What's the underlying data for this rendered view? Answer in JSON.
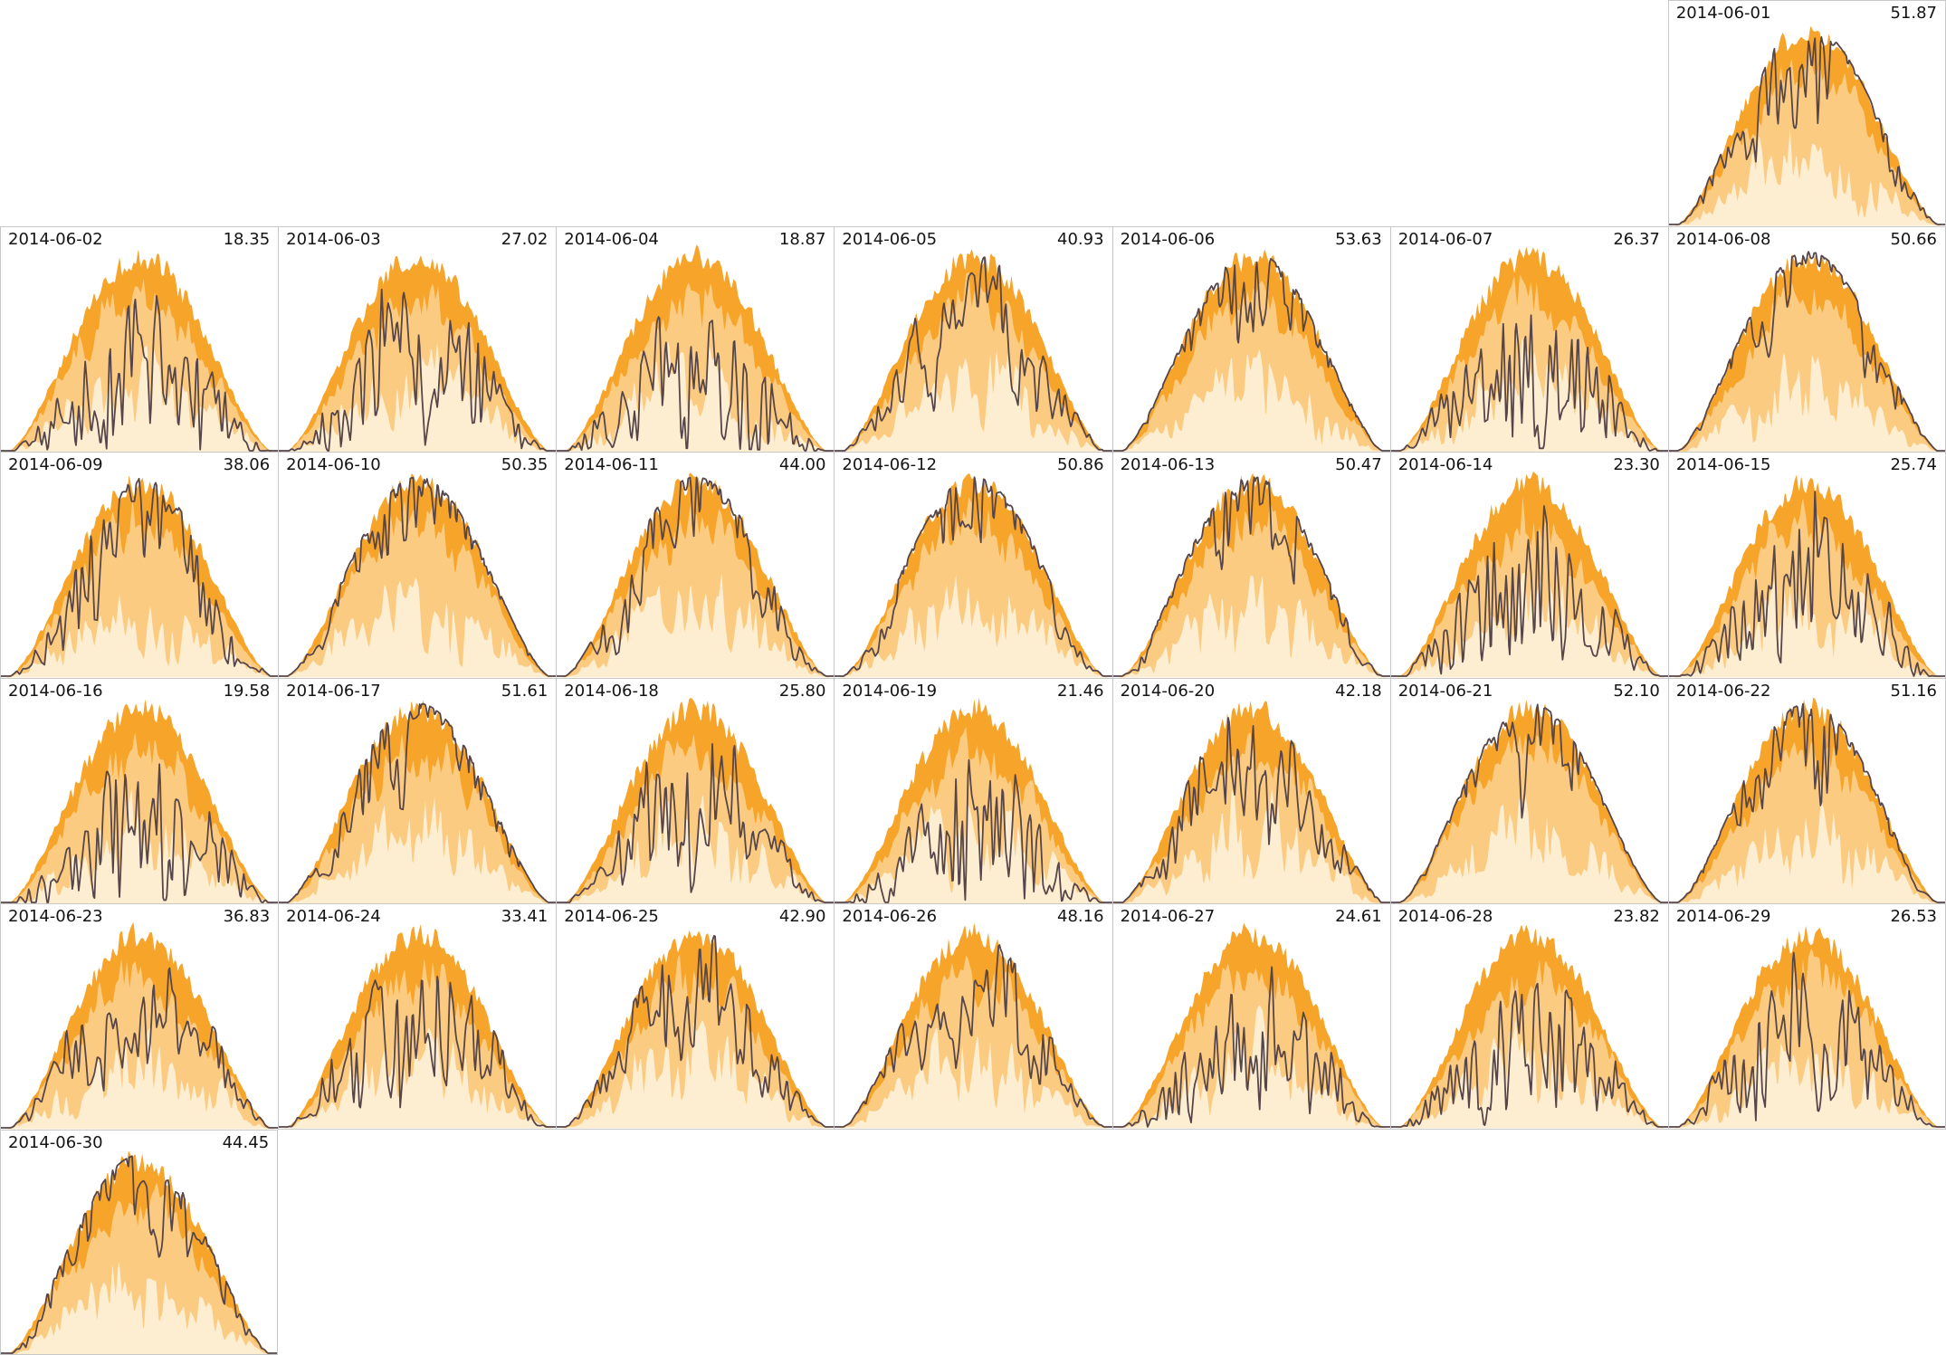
{
  "chart_data": {
    "type": "area",
    "layout": {
      "style": "calendar-small-multiples",
      "columns": 7,
      "rows": 6,
      "first_panel_column": 7,
      "panel_border_color": "#c8c8c8",
      "axes_ticks_visible": false,
      "background": "#ffffff"
    },
    "bands": [
      {
        "name": "upper-envelope",
        "color": "#f7a42a"
      },
      {
        "name": "middle-envelope",
        "color": "#fbcb81"
      },
      {
        "name": "lower-envelope",
        "color": "#fdeed2"
      }
    ],
    "measurement_line": {
      "name": "daily-measurement",
      "color": "#564549"
    },
    "label_color": "#141414",
    "value_scale_max": 53.63,
    "panels": [
      {
        "date": "2014-06-01",
        "value": "51.87"
      },
      {
        "date": "2014-06-02",
        "value": "18.35"
      },
      {
        "date": "2014-06-03",
        "value": "27.02"
      },
      {
        "date": "2014-06-04",
        "value": "18.87"
      },
      {
        "date": "2014-06-05",
        "value": "40.93"
      },
      {
        "date": "2014-06-06",
        "value": "53.63"
      },
      {
        "date": "2014-06-07",
        "value": "26.37"
      },
      {
        "date": "2014-06-08",
        "value": "50.66"
      },
      {
        "date": "2014-06-09",
        "value": "38.06"
      },
      {
        "date": "2014-06-10",
        "value": "50.35"
      },
      {
        "date": "2014-06-11",
        "value": "44.00"
      },
      {
        "date": "2014-06-12",
        "value": "50.86"
      },
      {
        "date": "2014-06-13",
        "value": "50.47"
      },
      {
        "date": "2014-06-14",
        "value": "23.30"
      },
      {
        "date": "2014-06-15",
        "value": "25.74"
      },
      {
        "date": "2014-06-16",
        "value": "19.58"
      },
      {
        "date": "2014-06-17",
        "value": "51.61"
      },
      {
        "date": "2014-06-18",
        "value": "25.80"
      },
      {
        "date": "2014-06-19",
        "value": "21.46"
      },
      {
        "date": "2014-06-20",
        "value": "42.18"
      },
      {
        "date": "2014-06-21",
        "value": "52.10"
      },
      {
        "date": "2014-06-22",
        "value": "51.16"
      },
      {
        "date": "2014-06-23",
        "value": "36.83"
      },
      {
        "date": "2014-06-24",
        "value": "33.41"
      },
      {
        "date": "2014-06-25",
        "value": "42.90"
      },
      {
        "date": "2014-06-26",
        "value": "48.16"
      },
      {
        "date": "2014-06-27",
        "value": "24.61"
      },
      {
        "date": "2014-06-28",
        "value": "23.82"
      },
      {
        "date": "2014-06-29",
        "value": "26.53"
      },
      {
        "date": "2014-06-30",
        "value": "44.45"
      }
    ]
  }
}
